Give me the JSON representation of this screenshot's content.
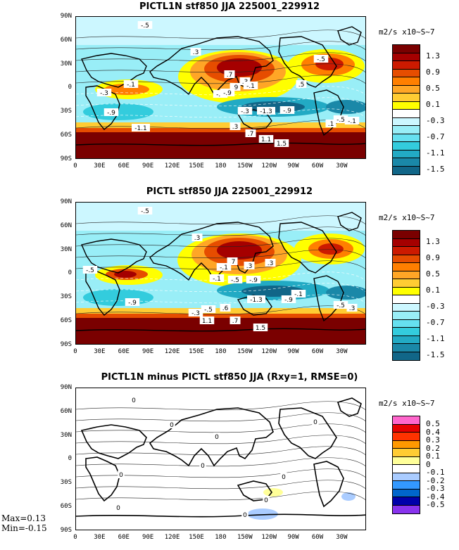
{
  "panels": [
    {
      "title": "PICTL1N stf850 JJA 225001_229912",
      "units": "m2/s x10~S~7",
      "legend": [
        "1.3",
        "0.9",
        "0.5",
        "0.1",
        "-0.3",
        "-0.7",
        "-1.1",
        "-1.5"
      ],
      "colors": [
        "#7a0000",
        "#a50000",
        "#cc1a00",
        "#e64d00",
        "#ff7f00",
        "#ffa626",
        "#ffcc33",
        "#ffff00",
        "#ffffff",
        "#ccf7ff",
        "#99eef7",
        "#66e0f0",
        "#33ccdd",
        "#22aac4",
        "#1a88a8",
        "#116688"
      ],
      "labels": [
        "-.5",
        ".3",
        "-.1",
        ".7",
        ".3",
        ".9",
        "-.5",
        "-.9",
        "-.3",
        "-.1",
        "-.9",
        "-.3",
        "-1.3",
        "-1.1",
        ".3",
        ".7",
        "1.1",
        "1.5",
        ".5",
        "-.9",
        ".1",
        "-.5",
        "-.1",
        "-.5"
      ]
    },
    {
      "title": "PICTL stf850 JJA 225001_229912",
      "units": "m2/s x10~S~7",
      "legend": [
        "1.3",
        "0.9",
        "0.5",
        "0.1",
        "-0.3",
        "-0.7",
        "-1.1",
        "-1.5"
      ],
      "colors": [
        "#7a0000",
        "#a50000",
        "#cc1a00",
        "#e64d00",
        "#ff7f00",
        "#ffa626",
        "#ffcc33",
        "#ffff00",
        "#ffffff",
        "#ccf7ff",
        "#99eef7",
        "#66e0f0",
        "#33ccdd",
        "#22aac4",
        "#1a88a8",
        "#116688"
      ],
      "labels": [
        "-.5",
        ".3",
        ".7",
        ".3",
        ".3",
        "-.5",
        "-.1",
        "-.9",
        "-.5",
        "-.1",
        "-1.3",
        "-.9",
        "-.5",
        ".3",
        "1.1",
        ".7",
        "1.5",
        ".6",
        "-.9",
        "-.5",
        "-.3",
        "-.1"
      ]
    },
    {
      "title": "PICTL1N minus PICTL stf850 JJA (Rxy=1, RMSE=0)",
      "units": "m2/s x10~S~7",
      "legend": [
        "0.5",
        "0.4",
        "0.3",
        "0.2",
        "0.1",
        "0",
        "-0.1",
        "-0.2",
        "-0.3",
        "-0.4",
        "-0.5"
      ],
      "colors": [
        "#ff66cc",
        "#e60000",
        "#ff3300",
        "#ff9900",
        "#ffcc33",
        "#ffff99",
        "#ffffff",
        "#aaccff",
        "#3399ff",
        "#0066cc",
        "#0000aa",
        "#8833ee"
      ],
      "labels": [
        "0",
        "0",
        "0",
        "0",
        "0",
        "0",
        "0",
        "0",
        "0",
        "0"
      ]
    }
  ],
  "lat_ticks": [
    "90N",
    "60N",
    "30N",
    "0",
    "30S",
    "60S",
    "90S"
  ],
  "lon_ticks": [
    "0",
    "30E",
    "60E",
    "90E",
    "120E",
    "150E",
    "180",
    "150W",
    "120W",
    "90W",
    "60W",
    "30W"
  ],
  "stats": {
    "max": "Max=0.13",
    "min": "Min=-0.15"
  }
}
